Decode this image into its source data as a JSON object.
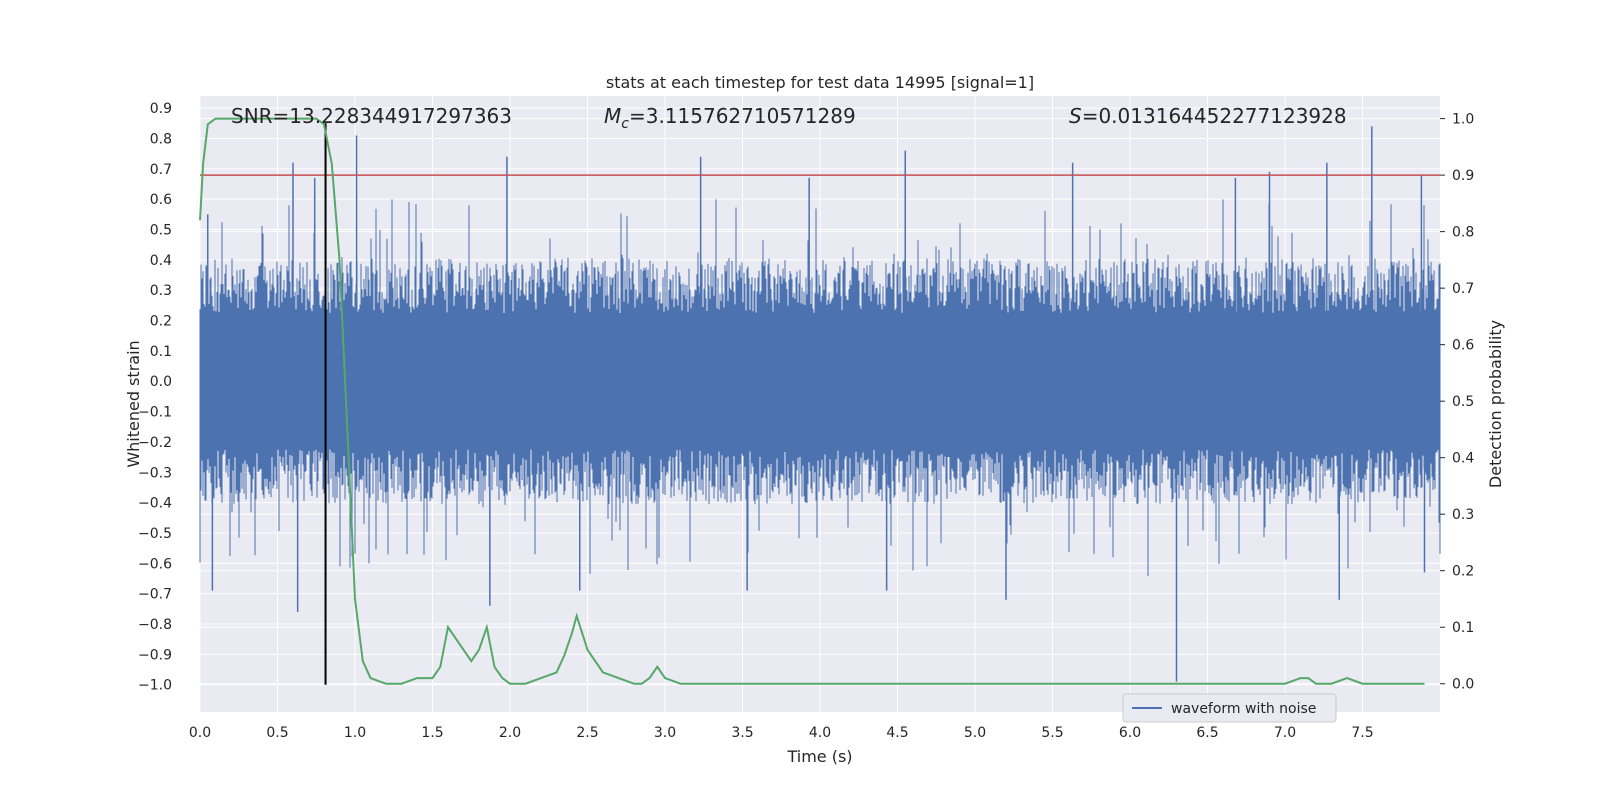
{
  "chart_data": {
    "type": "line",
    "title": "stats at each timestep for test data 14995 [signal=1]",
    "xlabel": "Time (s)",
    "ylabel": "Whitened strain",
    "y2label": "Detection probability",
    "xlim": [
      0.0,
      8.0
    ],
    "ylim": [
      -1.09,
      0.94
    ],
    "y2lim": [
      -0.05,
      1.04
    ],
    "x_ticks": [
      "0.0",
      "0.5",
      "1.0",
      "1.5",
      "2.0",
      "2.5",
      "3.0",
      "3.5",
      "4.0",
      "4.5",
      "5.0",
      "5.5",
      "6.0",
      "6.5",
      "7.0",
      "7.5"
    ],
    "y_ticks": [
      "0.9",
      "0.8",
      "0.7",
      "0.6",
      "0.5",
      "0.4",
      "0.3",
      "0.2",
      "0.1",
      "0.0",
      "−0.1",
      "−0.2",
      "−0.3",
      "−0.4",
      "−0.5",
      "−0.6",
      "−0.7",
      "−0.8",
      "−0.9",
      "−1.0"
    ],
    "y2_ticks": [
      "1.0",
      "0.9",
      "0.8",
      "0.7",
      "0.6",
      "0.5",
      "0.4",
      "0.3",
      "0.2",
      "0.1",
      "0.0"
    ],
    "grid": true,
    "annotations": {
      "snr": "SNR=13.228344917297363",
      "mc_symbol": "M",
      "mc_sub": "c",
      "mc_value": "=3.115762710571289",
      "s_symbol": "S",
      "s_value": "=0.013164452277123928"
    },
    "legend": {
      "position": "lower-right",
      "entries": [
        "waveform with noise"
      ]
    },
    "series": [
      {
        "name": "waveform with noise",
        "axis": "left",
        "color": "#4c72b0",
        "description_values": "noise band approx ±0.3, spikes",
        "spikes": [
          [
            0.05,
            0.55
          ],
          [
            0.08,
            -0.69
          ],
          [
            0.6,
            0.72
          ],
          [
            0.63,
            -0.76
          ],
          [
            0.74,
            0.67
          ],
          [
            1.01,
            0.81
          ],
          [
            1.87,
            -0.74
          ],
          [
            1.98,
            0.74
          ],
          [
            2.45,
            -0.69
          ],
          [
            3.23,
            0.74
          ],
          [
            3.53,
            -0.69
          ],
          [
            3.93,
            0.67
          ],
          [
            4.43,
            -0.69
          ],
          [
            4.55,
            0.76
          ],
          [
            5.2,
            -0.72
          ],
          [
            5.63,
            0.72
          ],
          [
            6.3,
            -0.99
          ],
          [
            6.68,
            0.67
          ],
          [
            6.9,
            0.69
          ],
          [
            7.27,
            0.72
          ],
          [
            7.35,
            -0.72
          ],
          [
            7.56,
            0.84
          ],
          [
            7.88,
            0.68
          ],
          [
            7.9,
            -0.63
          ]
        ]
      },
      {
        "name": "",
        "axis": "right",
        "color": "#55a868",
        "x": [
          0.0,
          0.02,
          0.05,
          0.1,
          0.2,
          0.4,
          0.6,
          0.75,
          0.8,
          0.85,
          0.9,
          0.95,
          1.0,
          1.05,
          1.1,
          1.2,
          1.3,
          1.4,
          1.45,
          1.5,
          1.55,
          1.6,
          1.7,
          1.75,
          1.8,
          1.85,
          1.9,
          1.95,
          2.0,
          2.1,
          2.2,
          2.3,
          2.35,
          2.4,
          2.43,
          2.5,
          2.6,
          2.7,
          2.8,
          2.85,
          2.9,
          2.95,
          3.0,
          3.1,
          3.3,
          3.5,
          3.7,
          3.9,
          4.1,
          4.3,
          4.5,
          4.7,
          4.9,
          5.1,
          5.3,
          5.5,
          5.7,
          5.9,
          6.0,
          6.2,
          6.4,
          6.6,
          6.8,
          6.9,
          7.0,
          7.1,
          7.15,
          7.2,
          7.3,
          7.4,
          7.5,
          7.7,
          7.9
        ],
        "values": [
          0.82,
          0.92,
          0.99,
          1.0,
          1.0,
          1.0,
          1.0,
          1.0,
          0.99,
          0.92,
          0.75,
          0.45,
          0.15,
          0.04,
          0.01,
          0.0,
          0.0,
          0.01,
          0.01,
          0.01,
          0.03,
          0.1,
          0.06,
          0.04,
          0.06,
          0.1,
          0.03,
          0.01,
          0.0,
          0.0,
          0.01,
          0.02,
          0.05,
          0.09,
          0.12,
          0.06,
          0.02,
          0.01,
          0.0,
          0.0,
          0.01,
          0.03,
          0.01,
          0.0,
          0.0,
          0.0,
          0.0,
          0.0,
          0.0,
          0.0,
          0.0,
          0.0,
          0.0,
          0.0,
          0.0,
          0.0,
          0.0,
          0.0,
          0.0,
          0.0,
          0.0,
          0.0,
          0.0,
          0.0,
          0.0,
          0.01,
          0.01,
          0.0,
          0.0,
          0.01,
          0.0,
          0.0,
          0.0
        ]
      }
    ],
    "reference_lines": [
      {
        "orientation": "horizontal",
        "axis": "right",
        "value": 0.9,
        "color": "#c44e52"
      },
      {
        "orientation": "vertical",
        "value": 0.81,
        "y_from": -1.0,
        "y_to": 0.85,
        "color": "#000000"
      }
    ]
  }
}
